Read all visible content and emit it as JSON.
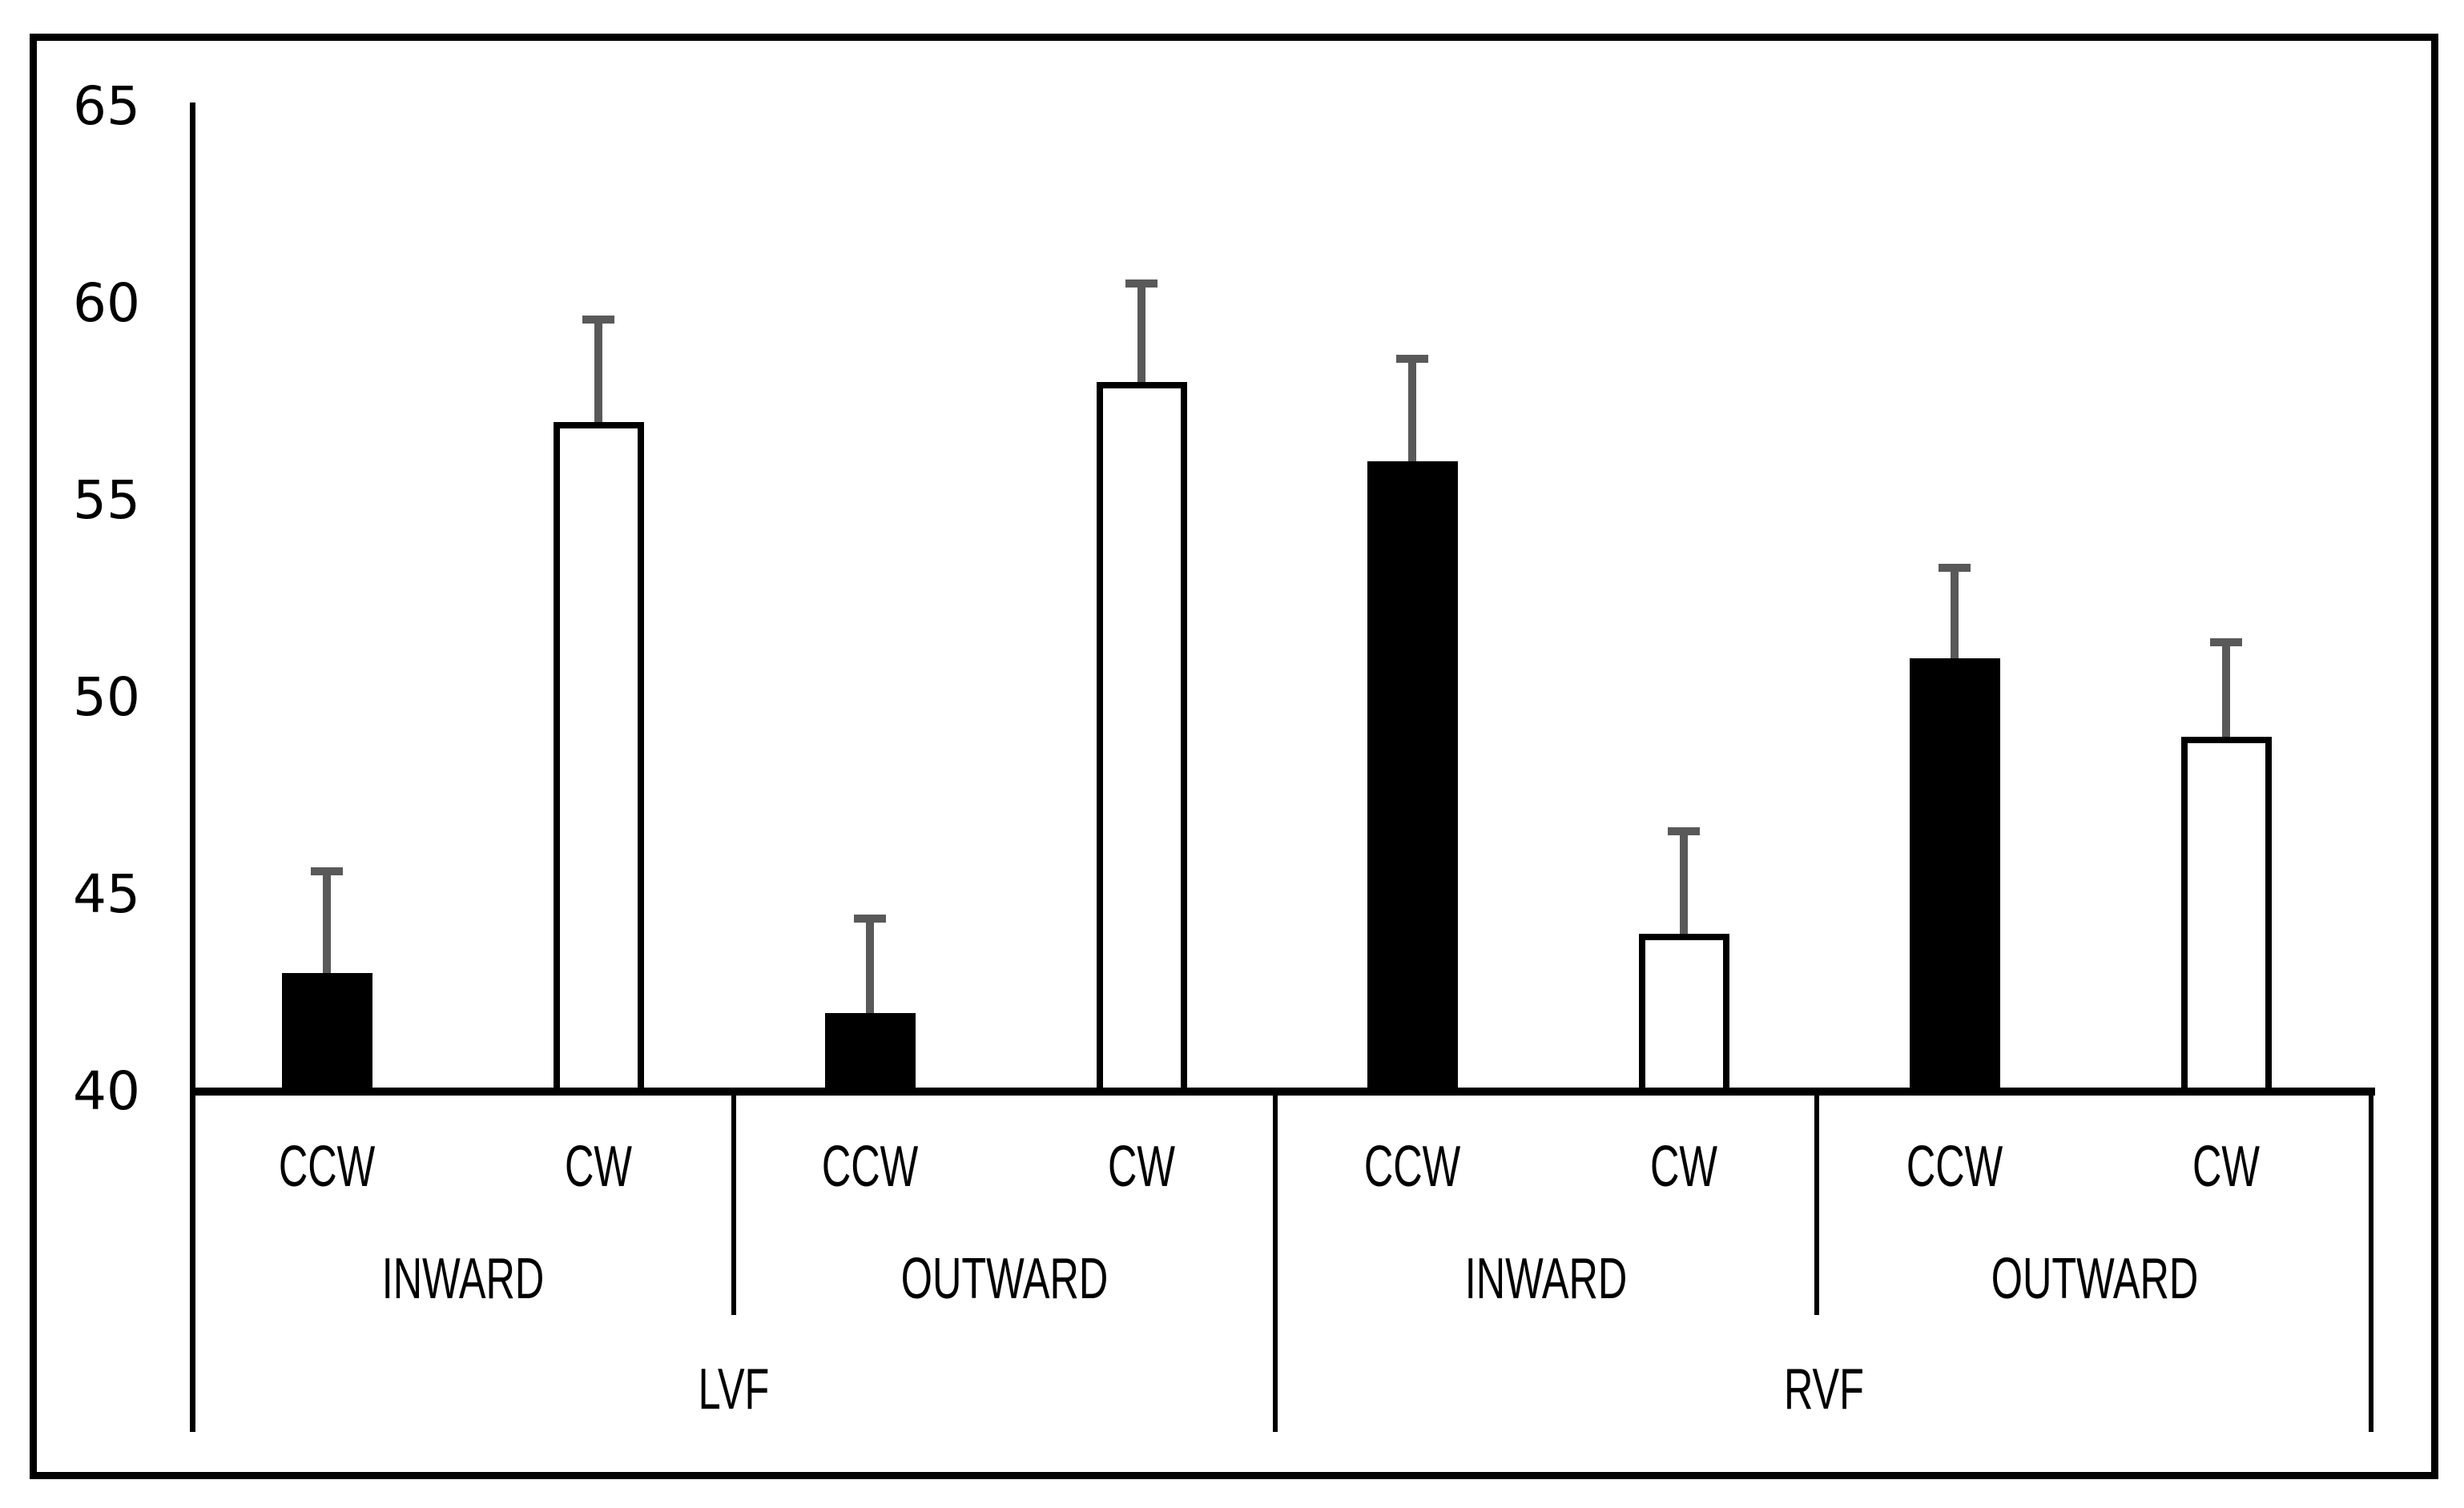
{
  "chart_data": {
    "type": "bar",
    "title": "",
    "xlabel": "",
    "ylabel": "",
    "ylim": [
      40,
      65
    ],
    "yticks": [
      65,
      60,
      55,
      50,
      45,
      40
    ],
    "grid": false,
    "legend": null,
    "error_bars": "upper only",
    "series": [
      {
        "visual_field": "LVF",
        "direction": "INWARD",
        "rotation": "CCW",
        "value": 43,
        "error_upper": 2.7,
        "fill": "black"
      },
      {
        "visual_field": "LVF",
        "direction": "INWARD",
        "rotation": "CW",
        "value": 57,
        "error_upper": 2.7,
        "fill": "white"
      },
      {
        "visual_field": "LVF",
        "direction": "OUTWARD",
        "rotation": "CCW",
        "value": 42,
        "error_upper": 2.5,
        "fill": "black"
      },
      {
        "visual_field": "LVF",
        "direction": "OUTWARD",
        "rotation": "CW",
        "value": 58,
        "error_upper": 2.6,
        "fill": "white"
      },
      {
        "visual_field": "RVF",
        "direction": "INWARD",
        "rotation": "CCW",
        "value": 56,
        "error_upper": 2.7,
        "fill": "black"
      },
      {
        "visual_field": "RVF",
        "direction": "INWARD",
        "rotation": "CW",
        "value": 44,
        "error_upper": 2.7,
        "fill": "white"
      },
      {
        "visual_field": "RVF",
        "direction": "OUTWARD",
        "rotation": "CCW",
        "value": 51,
        "error_upper": 2.4,
        "fill": "black"
      },
      {
        "visual_field": "RVF",
        "direction": "OUTWARD",
        "rotation": "CW",
        "value": 49,
        "error_upper": 2.5,
        "fill": "white"
      }
    ],
    "axis_row_labels": {
      "rotation_row": [
        "CCW",
        "CW",
        "CCW",
        "CW",
        "CCW",
        "CW",
        "CCW",
        "CW"
      ],
      "direction_row": [
        "INWARD",
        "OUTWARD",
        "INWARD",
        "OUTWARD"
      ],
      "visual_field_row": [
        "LVF",
        "RVF"
      ]
    },
    "colors": {
      "bar_fill_black": "#000000",
      "bar_fill_white": "#ffffff",
      "bar_outline": "#000000",
      "error_bar": "#595959",
      "axis_line": "#000000",
      "background": "#ffffff"
    }
  }
}
